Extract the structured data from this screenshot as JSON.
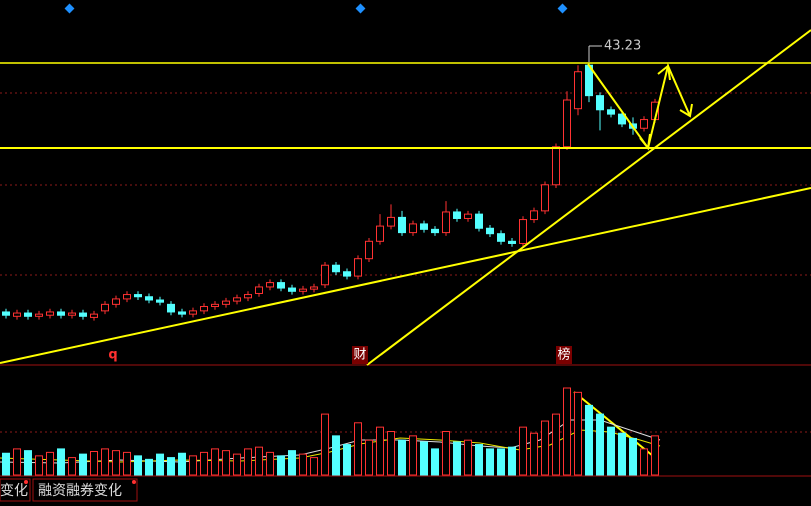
{
  "chart_data": {
    "type": "candlestick",
    "open": [
      20.3,
      19.9,
      20.2,
      19.9,
      20.0,
      20.3,
      20.0,
      20.2,
      19.8,
      20.4,
      21.0,
      21.5,
      21.9,
      21.7,
      21.4,
      21.0,
      20.3,
      20.1,
      20.4,
      20.8,
      21.0,
      21.3,
      21.6,
      22.0,
      22.6,
      23.0,
      22.5,
      22.2,
      22.4,
      22.8,
      24.6,
      24.0,
      23.6,
      25.2,
      26.8,
      28.2,
      29.0,
      27.6,
      28.4,
      27.9,
      27.6,
      29.5,
      28.9,
      29.3,
      28.0,
      27.5,
      26.8,
      26.6,
      28.8,
      29.6,
      32.0,
      35.5,
      39.0,
      43.0,
      40.2,
      38.9,
      38.5,
      37.6,
      37.2,
      38.0
    ],
    "high": [
      20.6,
      20.5,
      20.5,
      20.4,
      20.6,
      20.6,
      20.5,
      20.5,
      20.4,
      21.3,
      21.8,
      22.2,
      22.2,
      22.0,
      21.7,
      21.3,
      20.6,
      20.7,
      21.1,
      21.3,
      21.6,
      21.9,
      22.2,
      22.9,
      23.3,
      23.3,
      22.8,
      22.7,
      22.9,
      24.9,
      24.9,
      24.3,
      25.5,
      27.1,
      29.3,
      30.2,
      29.6,
      28.7,
      28.7,
      28.2,
      30.5,
      29.8,
      29.6,
      29.6,
      28.3,
      27.8,
      27.1,
      29.1,
      29.9,
      32.3,
      35.8,
      40.6,
      43.0,
      43.23,
      40.5,
      39.2,
      38.8,
      38.2,
      38.3,
      39.9
    ],
    "low": [
      19.7,
      19.6,
      19.6,
      19.6,
      19.7,
      19.7,
      19.7,
      19.6,
      19.5,
      20.1,
      20.7,
      21.2,
      21.4,
      21.1,
      20.9,
      20.0,
      19.8,
      19.8,
      20.1,
      20.5,
      20.7,
      21.0,
      21.3,
      21.7,
      22.3,
      22.2,
      21.9,
      21.9,
      22.1,
      22.5,
      23.7,
      23.3,
      23.3,
      24.9,
      26.5,
      27.9,
      27.3,
      27.3,
      27.6,
      27.3,
      27.3,
      28.6,
      28.6,
      27.7,
      27.2,
      26.5,
      26.3,
      26.3,
      28.5,
      29.3,
      31.7,
      35.2,
      38.4,
      39.6,
      37.0,
      38.2,
      37.3,
      36.6,
      36.9,
      37.7
    ],
    "close": [
      20.0,
      20.2,
      19.9,
      20.1,
      20.3,
      20.0,
      20.2,
      19.9,
      20.1,
      21.0,
      21.5,
      21.9,
      21.7,
      21.4,
      21.2,
      20.3,
      20.1,
      20.4,
      20.8,
      21.0,
      21.3,
      21.6,
      21.9,
      22.6,
      23.0,
      22.5,
      22.2,
      22.4,
      22.6,
      24.6,
      24.0,
      23.6,
      25.2,
      26.8,
      28.2,
      29.0,
      27.6,
      28.4,
      27.9,
      27.6,
      29.5,
      28.9,
      29.3,
      28.0,
      27.5,
      26.8,
      26.6,
      28.8,
      29.6,
      32.0,
      35.5,
      39.8,
      42.4,
      40.2,
      38.9,
      38.5,
      37.6,
      37.2,
      38.0,
      39.6
    ],
    "volume": [
      25,
      30,
      28,
      22,
      26,
      30,
      20,
      24,
      27,
      30,
      28,
      26,
      22,
      18,
      24,
      20,
      25,
      22,
      26,
      30,
      28,
      24,
      30,
      32,
      26,
      22,
      28,
      24,
      20,
      70,
      45,
      35,
      60,
      40,
      55,
      50,
      40,
      45,
      38,
      30,
      50,
      38,
      40,
      35,
      30,
      30,
      32,
      55,
      48,
      62,
      70,
      100,
      95,
      80,
      70,
      55,
      48,
      42,
      30,
      45
    ],
    "up_color": "#ff3232",
    "down_color": "#54ffff",
    "ylim": [
      15.42,
      49.0
    ],
    "vlim": [
      0,
      100
    ],
    "max_label": "43.23",
    "markers": [
      "q",
      "财",
      "榜"
    ]
  },
  "tabs": [
    "变化",
    "融资融券变化"
  ]
}
